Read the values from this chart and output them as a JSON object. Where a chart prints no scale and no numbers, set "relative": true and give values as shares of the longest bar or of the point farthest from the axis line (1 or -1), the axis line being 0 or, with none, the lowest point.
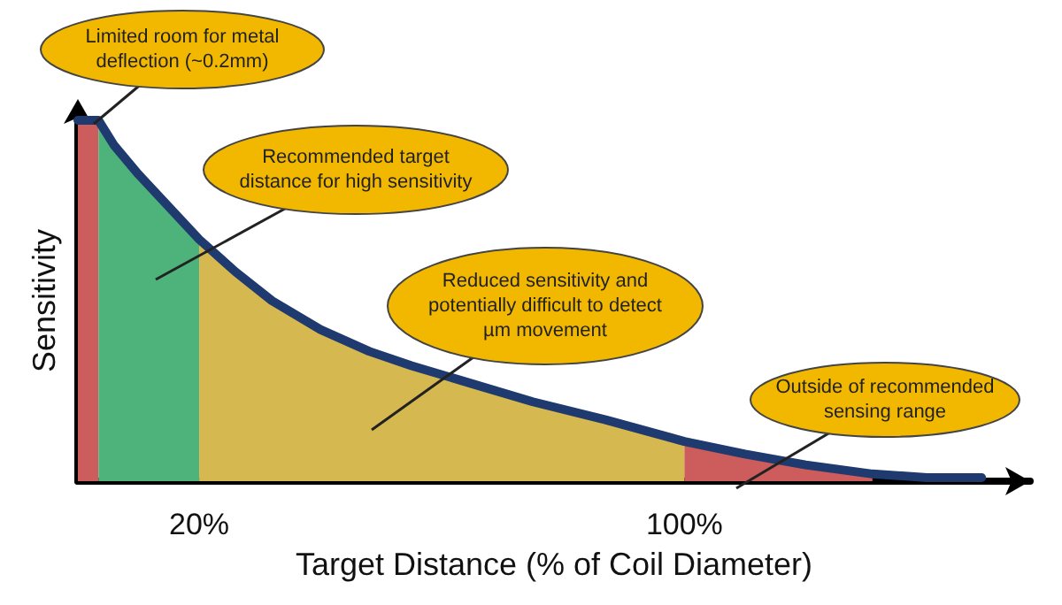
{
  "chart_data": {
    "type": "area",
    "relative": true,
    "xlabel": "Target Distance (% of Coil Diameter)",
    "ylabel": "Sensitivity",
    "series": [
      {
        "type": "line",
        "color": "#1f3a6e",
        "x": [
          0,
          3.4,
          6,
          10,
          15,
          20,
          26,
          32,
          40,
          48,
          55,
          65,
          75,
          87,
          100,
          110,
          120,
          131,
          140,
          149
        ],
        "values": [
          1.0,
          1.0,
          0.93,
          0.85,
          0.76,
          0.67,
          0.58,
          0.5,
          0.42,
          0.36,
          0.32,
          0.27,
          0.22,
          0.17,
          0.11,
          0.075,
          0.045,
          0.02,
          0.01,
          0.01
        ]
      },
      {
        "color": "#cd5c5c",
        "x": [
          0,
          3.4
        ],
        "values": [
          1.0,
          1.0
        ]
      },
      {
        "color": "#4db37b",
        "x": [
          3.4,
          6,
          10,
          15,
          20
        ],
        "values": [
          1.0,
          0.93,
          0.85,
          0.76,
          0.67
        ]
      },
      {
        "color": "#d6b851",
        "x": [
          20,
          26,
          32,
          40,
          48,
          55,
          65,
          75,
          87,
          100
        ],
        "values": [
          0.67,
          0.58,
          0.5,
          0.42,
          0.36,
          0.32,
          0.27,
          0.22,
          0.17,
          0.11
        ]
      },
      {
        "color": "#cd5c5c",
        "x": [
          100,
          110,
          120,
          131
        ],
        "values": [
          0.11,
          0.075,
          0.045,
          0.02
        ]
      }
    ],
    "xlim": [
      0,
      157
    ],
    "xticks": [
      {
        "value": 20,
        "label": "20%"
      },
      {
        "value": 100,
        "label": "100%"
      }
    ],
    "grid": false,
    "marker": "none",
    "line_style": "solid",
    "annotations": [
      "Limited room for metal deflection (~0.2mm)",
      "Recommended target distance for high sensitivity",
      "Reduced sensitivity and potentially difficult to detect µm movement",
      "Outside of recommended sensing range"
    ]
  }
}
